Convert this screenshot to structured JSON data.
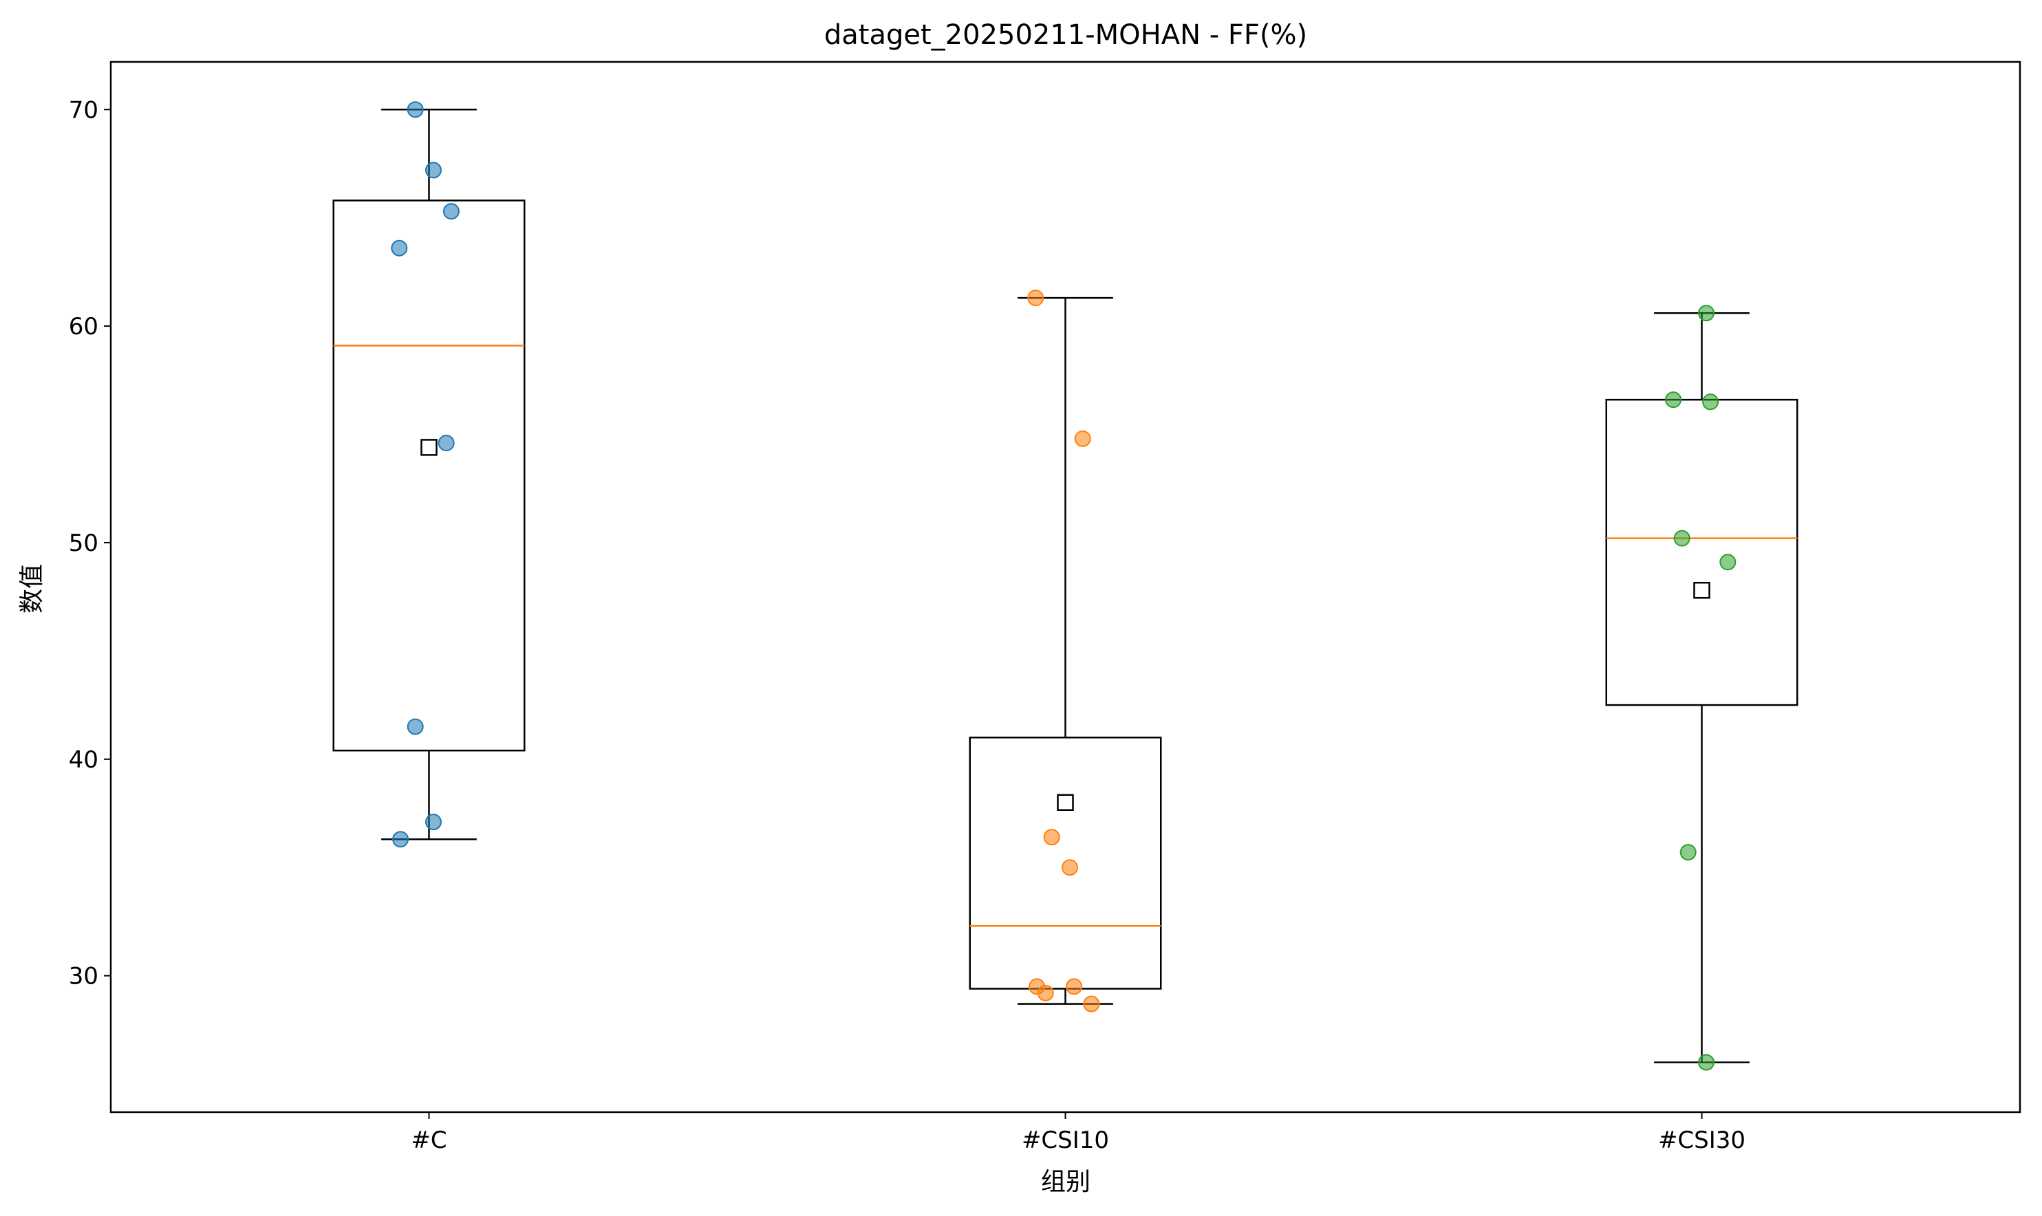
{
  "chart_data": {
    "type": "box",
    "title": "dataget_20250211-MOHAN - FF(%)",
    "xlabel": "组别",
    "ylabel": "数值",
    "ylim": [
      23.7,
      72.2
    ],
    "yticks": [
      30,
      40,
      50,
      60,
      70
    ],
    "grid": false,
    "categories": [
      "#C",
      "#CSI10",
      "#CSI30"
    ],
    "groups": [
      {
        "name": "#C",
        "color": "#1f77b4",
        "whisker_low": 36.3,
        "q1": 40.4,
        "median": 59.1,
        "q3": 65.8,
        "whisker_high": 70.0,
        "mean": 54.4,
        "points": [
          70.0,
          67.2,
          65.3,
          63.6,
          54.6,
          41.5,
          37.1,
          36.3
        ]
      },
      {
        "name": "#CSI10",
        "color": "#ff7f0e",
        "whisker_low": 28.7,
        "q1": 29.4,
        "median": 32.3,
        "q3": 41.0,
        "whisker_high": 61.3,
        "mean": 38.0,
        "points": [
          61.3,
          54.8,
          36.4,
          35.0,
          29.5,
          29.5,
          29.2,
          28.7
        ]
      },
      {
        "name": "#CSI30",
        "color": "#2ca02c",
        "whisker_low": 26.0,
        "q1": 42.5,
        "median": 50.2,
        "q3": 56.6,
        "whisker_high": 60.6,
        "mean": 47.8,
        "points": [
          60.6,
          56.6,
          56.5,
          50.2,
          49.1,
          35.7,
          26.0
        ]
      }
    ],
    "style": {
      "median_color": "#ff7f0e",
      "box_color": "#000000",
      "point_alpha": 0.55
    }
  }
}
